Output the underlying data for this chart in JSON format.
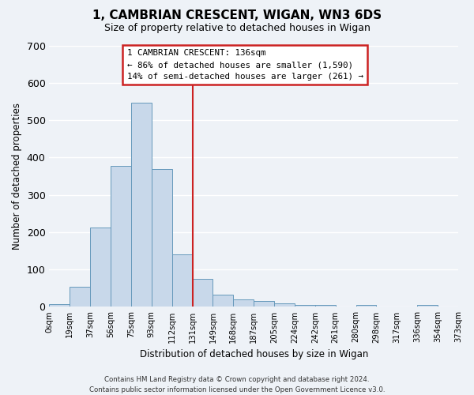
{
  "title": "1, CAMBRIAN CRESCENT, WIGAN, WN3 6DS",
  "subtitle": "Size of property relative to detached houses in Wigan",
  "xlabel": "Distribution of detached houses by size in Wigan",
  "ylabel": "Number of detached properties",
  "bar_color": "#c8d8ea",
  "bar_edge_color": "#6699bb",
  "background_color": "#eef2f7",
  "grid_color": "#ffffff",
  "bin_labels": [
    "0sqm",
    "19sqm",
    "37sqm",
    "56sqm",
    "75sqm",
    "93sqm",
    "112sqm",
    "131sqm",
    "149sqm",
    "168sqm",
    "187sqm",
    "205sqm",
    "224sqm",
    "242sqm",
    "261sqm",
    "280sqm",
    "298sqm",
    "317sqm",
    "336sqm",
    "354sqm",
    "373sqm"
  ],
  "bar_heights": [
    7,
    53,
    212,
    378,
    547,
    370,
    140,
    76,
    32,
    21,
    16,
    9,
    6,
    5,
    0,
    5,
    0,
    0,
    5,
    0
  ],
  "vline_x": 7,
  "vline_color": "#cc2222",
  "ylim": [
    0,
    700
  ],
  "yticks": [
    0,
    100,
    200,
    300,
    400,
    500,
    600,
    700
  ],
  "annotation_title": "1 CAMBRIAN CRESCENT: 136sqm",
  "annotation_line1": "← 86% of detached houses are smaller (1,590)",
  "annotation_line2": "14% of semi-detached houses are larger (261) →",
  "annotation_box_color": "#ffffff",
  "annotation_box_edge_color": "#cc2222",
  "footer_line1": "Contains HM Land Registry data © Crown copyright and database right 2024.",
  "footer_line2": "Contains public sector information licensed under the Open Government Licence v3.0."
}
